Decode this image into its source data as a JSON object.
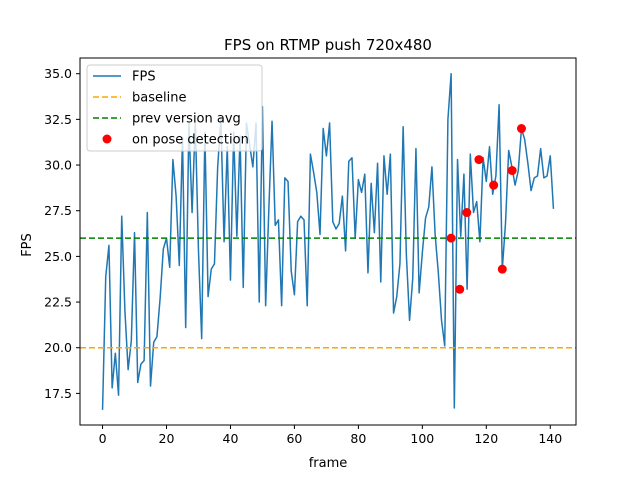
{
  "chart_data": {
    "type": "line",
    "title": "FPS on RTMP push 720x480",
    "xlabel": "frame",
    "ylabel": "FPS",
    "xlim": [
      -7.05,
      148.05
    ],
    "ylim": [
      15.77,
      35.86
    ],
    "xticks": [
      0,
      20,
      40,
      60,
      80,
      100,
      120,
      140
    ],
    "yticks": [
      17.5,
      20.0,
      22.5,
      25.0,
      27.5,
      30.0,
      32.5,
      35.0
    ],
    "grid": false,
    "legend_position": "top-left",
    "series": [
      {
        "name": "FPS",
        "kind": "line",
        "color": "#1f77b4",
        "x": [
          0,
          1,
          2,
          3,
          4,
          5,
          6,
          7,
          8,
          9,
          10,
          11,
          12,
          13,
          14,
          15,
          16,
          17,
          18,
          19,
          20,
          21,
          22,
          23,
          24,
          25,
          26,
          27,
          28,
          29,
          30,
          31,
          32,
          33,
          34,
          35,
          36,
          37,
          38,
          39,
          40,
          41,
          42,
          43,
          44,
          45,
          46,
          47,
          48,
          49,
          50,
          51,
          52,
          53,
          54,
          55,
          56,
          57,
          58,
          59,
          60,
          61,
          62,
          63,
          64,
          65,
          66,
          67,
          68,
          69,
          70,
          71,
          72,
          73,
          74,
          75,
          76,
          77,
          78,
          79,
          80,
          81,
          82,
          83,
          84,
          85,
          86,
          87,
          88,
          89,
          90,
          91,
          92,
          93,
          94,
          95,
          96,
          97,
          98,
          99,
          100,
          101,
          102,
          103,
          104,
          105,
          106,
          107,
          108,
          109,
          110,
          111,
          112,
          113,
          114,
          115,
          116,
          117,
          118,
          119,
          120,
          121,
          122,
          123,
          124,
          125,
          126,
          127,
          128,
          129,
          130,
          131,
          132,
          133,
          134,
          135,
          136,
          137,
          138,
          139,
          140,
          141
        ],
        "y": [
          16.6,
          23.9,
          25.6,
          17.8,
          19.7,
          17.4,
          27.2,
          22.0,
          18.8,
          20.4,
          26.3,
          18.1,
          19.1,
          19.3,
          27.4,
          17.9,
          20.3,
          20.6,
          22.7,
          25.4,
          26.0,
          24.4,
          30.3,
          28.3,
          24.5,
          31.5,
          21.1,
          32.3,
          27.4,
          32.4,
          25.3,
          20.5,
          31.8,
          22.8,
          24.3,
          24.6,
          29.9,
          32.5,
          25.8,
          31.0,
          23.7,
          31.8,
          26.1,
          31.6,
          23.3,
          32.3,
          31.1,
          29.9,
          32.3,
          22.5,
          33.2,
          22.3,
          27.6,
          32.4,
          26.7,
          27.0,
          22.3,
          29.3,
          29.1,
          24.2,
          22.9,
          26.9,
          27.2,
          27.0,
          22.3,
          30.6,
          29.6,
          28.5,
          26.2,
          32.0,
          30.5,
          32.3,
          26.9,
          26.5,
          26.8,
          28.3,
          25.3,
          30.2,
          30.4,
          26.0,
          29.2,
          28.5,
          29.5,
          24.1,
          29.0,
          26.3,
          30.1,
          23.6,
          30.5,
          28.4,
          30.6,
          21.9,
          22.8,
          24.6,
          32.1,
          25.1,
          21.5,
          23.8,
          30.9,
          23.0,
          25.2,
          27.1,
          27.7,
          29.9,
          26.2,
          24.1,
          21.5,
          20.1,
          32.5,
          35.0,
          16.7,
          30.3,
          26.1,
          29.5,
          23.2,
          30.6,
          27.4,
          28.0,
          25.8,
          30.4,
          29.1,
          31.0,
          28.4,
          29.4,
          33.3,
          24.3,
          26.8,
          30.8,
          29.9,
          28.9,
          29.7,
          32.0,
          31.4,
          30.1,
          28.6,
          29.3,
          29.4,
          30.9,
          29.3,
          29.4,
          30.5,
          27.6
        ]
      },
      {
        "name": "baseline",
        "kind": "hline",
        "color": "#ffa500",
        "y": 20.0
      },
      {
        "name": "prev version avg",
        "kind": "hline",
        "color": "#008000",
        "y": 26.0
      },
      {
        "name": "on pose detection",
        "kind": "scatter",
        "color": "#ff0000",
        "x": [
          109.0,
          111.7,
          113.9,
          117.7,
          122.3,
          125.0,
          128.1,
          131.0
        ],
        "y": [
          26.0,
          23.2,
          27.4,
          30.3,
          28.9,
          24.3,
          29.7,
          32.0
        ]
      }
    ]
  }
}
